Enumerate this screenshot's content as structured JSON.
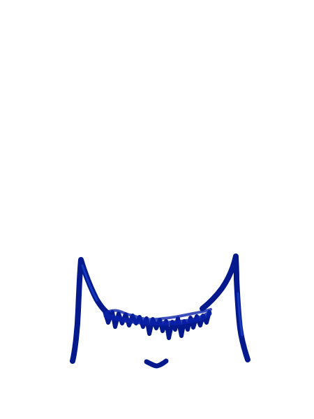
{
  "drawing": {
    "background_color": "#ffffff",
    "ink_color": "#0a22a8",
    "ink_dark_color": "#041a8c",
    "ink_light_color": "#1f4fe0",
    "elements": [
      "left-line-stroke",
      "right-line-stroke",
      "zigzag-scribble-stroke",
      "small-curve-mark"
    ]
  }
}
